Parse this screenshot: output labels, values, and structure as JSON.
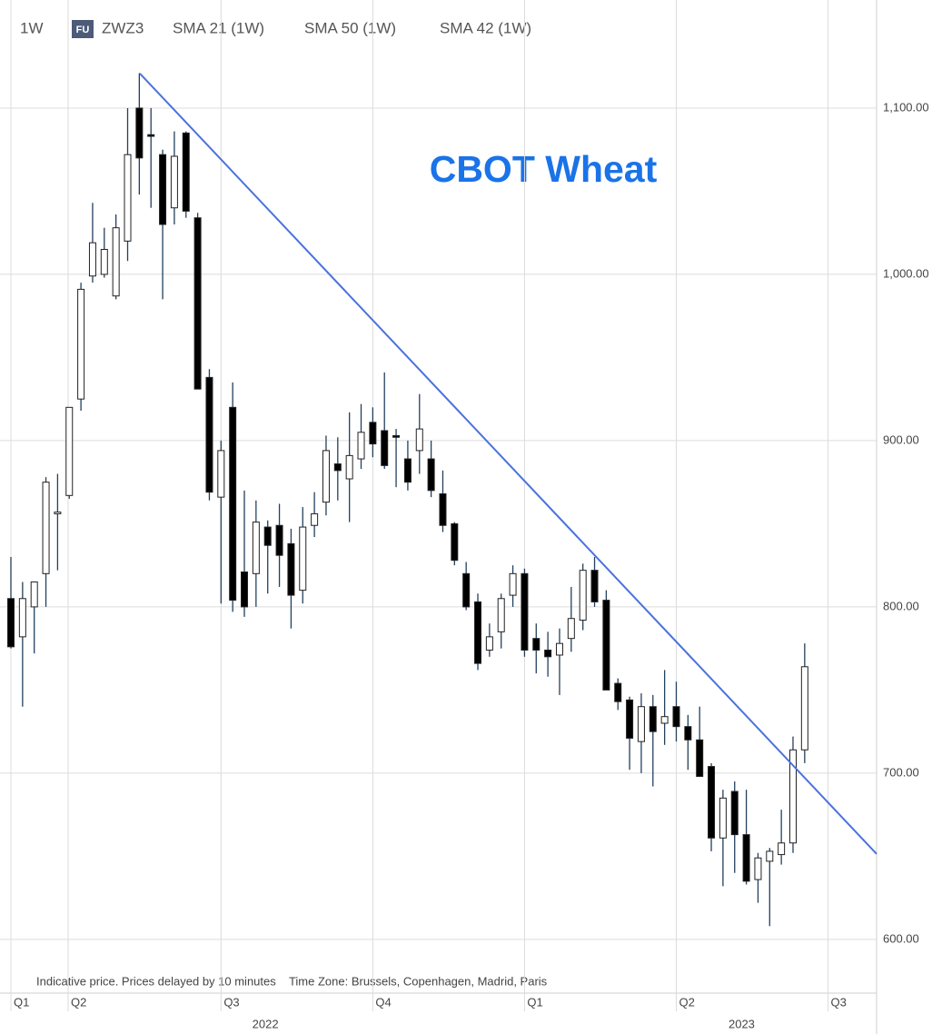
{
  "header": {
    "interval": "1W",
    "badge": "FU",
    "symbol": "ZWZ3",
    "indicators": [
      "SMA 21 (1W)",
      "SMA 50 (1W)",
      "SMA 42 (1W)"
    ]
  },
  "chart_data": {
    "type": "candlestick",
    "title": "CBOT Wheat",
    "note": "Indicative price. Prices delayed by 10 minutes    Time Zone: Brussels, Copenhagen, Madrid, Paris",
    "open": [
      805,
      782,
      800,
      820,
      856,
      867,
      925,
      999,
      1000,
      987,
      1020,
      1100,
      1084,
      1072,
      1040,
      1085,
      1034,
      938,
      866,
      920,
      821,
      820,
      848,
      849,
      838,
      810,
      849,
      863,
      886,
      877,
      889,
      911,
      906,
      903,
      889,
      894,
      889,
      868,
      850,
      820,
      803,
      774,
      785,
      807,
      820,
      781,
      774,
      771,
      781,
      792,
      822,
      804,
      754,
      744,
      719,
      740,
      730,
      740,
      728,
      720,
      704,
      661,
      689,
      663,
      636,
      647,
      651,
      658,
      714
    ],
    "high": [
      830,
      815,
      815,
      878,
      880,
      920,
      995,
      1043,
      1028,
      1036,
      1100,
      1121,
      1100,
      1075,
      1086,
      1086,
      1037,
      943,
      900,
      935,
      870,
      864,
      852,
      862,
      847,
      860,
      869,
      903,
      902,
      917,
      922,
      920,
      941,
      907,
      900,
      928,
      900,
      882,
      851,
      827,
      808,
      790,
      808,
      825,
      823,
      790,
      785,
      787,
      812,
      826,
      830,
      810,
      757,
      746,
      748,
      747,
      762,
      755,
      735,
      740,
      706,
      690,
      695,
      690,
      652,
      655,
      678,
      722,
      778
    ],
    "low": [
      775,
      740,
      772,
      800,
      822,
      865,
      918,
      995,
      998,
      985,
      1008,
      1048,
      1040,
      985,
      1030,
      1034,
      931,
      864,
      802,
      797,
      794,
      800,
      808,
      812,
      787,
      802,
      842,
      855,
      864,
      851,
      883,
      890,
      883,
      872,
      870,
      880,
      866,
      845,
      825,
      798,
      762,
      770,
      775,
      800,
      770,
      760,
      758,
      747,
      773,
      786,
      800,
      750,
      738,
      702,
      700,
      692,
      717,
      719,
      702,
      698,
      653,
      632,
      640,
      633,
      622,
      608,
      645,
      652,
      706
    ],
    "close": [
      776,
      805,
      815,
      875,
      857,
      920,
      991,
      1019,
      1015,
      1028,
      1072,
      1070,
      1083,
      1030,
      1071,
      1038,
      931,
      869,
      894,
      804,
      800,
      851,
      837,
      831,
      807,
      848,
      856,
      894,
      882,
      891,
      905,
      898,
      885,
      902,
      875,
      907,
      870,
      849,
      828,
      800,
      766,
      782,
      805,
      820,
      774,
      774,
      770,
      778,
      793,
      822,
      803,
      750,
      743,
      721,
      740,
      725,
      734,
      728,
      720,
      698,
      661,
      685,
      663,
      635,
      649,
      653,
      658,
      714,
      764
    ],
    "up_color": "#ffffff",
    "down_color": "#000000",
    "wick_color": "#23405e",
    "xlim": [
      -0.934,
      74.16
    ],
    "ylim": [
      583,
      1165
    ],
    "yticks": [
      {
        "value": 600,
        "label": "600.00"
      },
      {
        "value": 700,
        "label": "700.00"
      },
      {
        "value": 800,
        "label": "800.00"
      },
      {
        "value": 900,
        "label": "900.00"
      },
      {
        "value": 1000,
        "label": "1,000.00"
      },
      {
        "value": 1100,
        "label": "1,100.00"
      }
    ],
    "xticks": [
      {
        "value": 0,
        "label": "Q1"
      },
      {
        "value": 4.9,
        "label": "Q2"
      },
      {
        "value": 18,
        "label": "Q3"
      },
      {
        "value": 31,
        "label": "Q4"
      },
      {
        "value": 44,
        "label": "Q1"
      },
      {
        "value": 57,
        "label": "Q2"
      },
      {
        "value": 70,
        "label": "Q3"
      }
    ],
    "year_ticks": [
      {
        "value": 21.8,
        "label": "2022"
      },
      {
        "value": 62.6,
        "label": "2023"
      }
    ],
    "trendline": {
      "x": [
        11.05,
        74.16
      ],
      "y": [
        1120.8,
        651.4
      ],
      "color": "#4a72dd"
    },
    "grid": true
  }
}
